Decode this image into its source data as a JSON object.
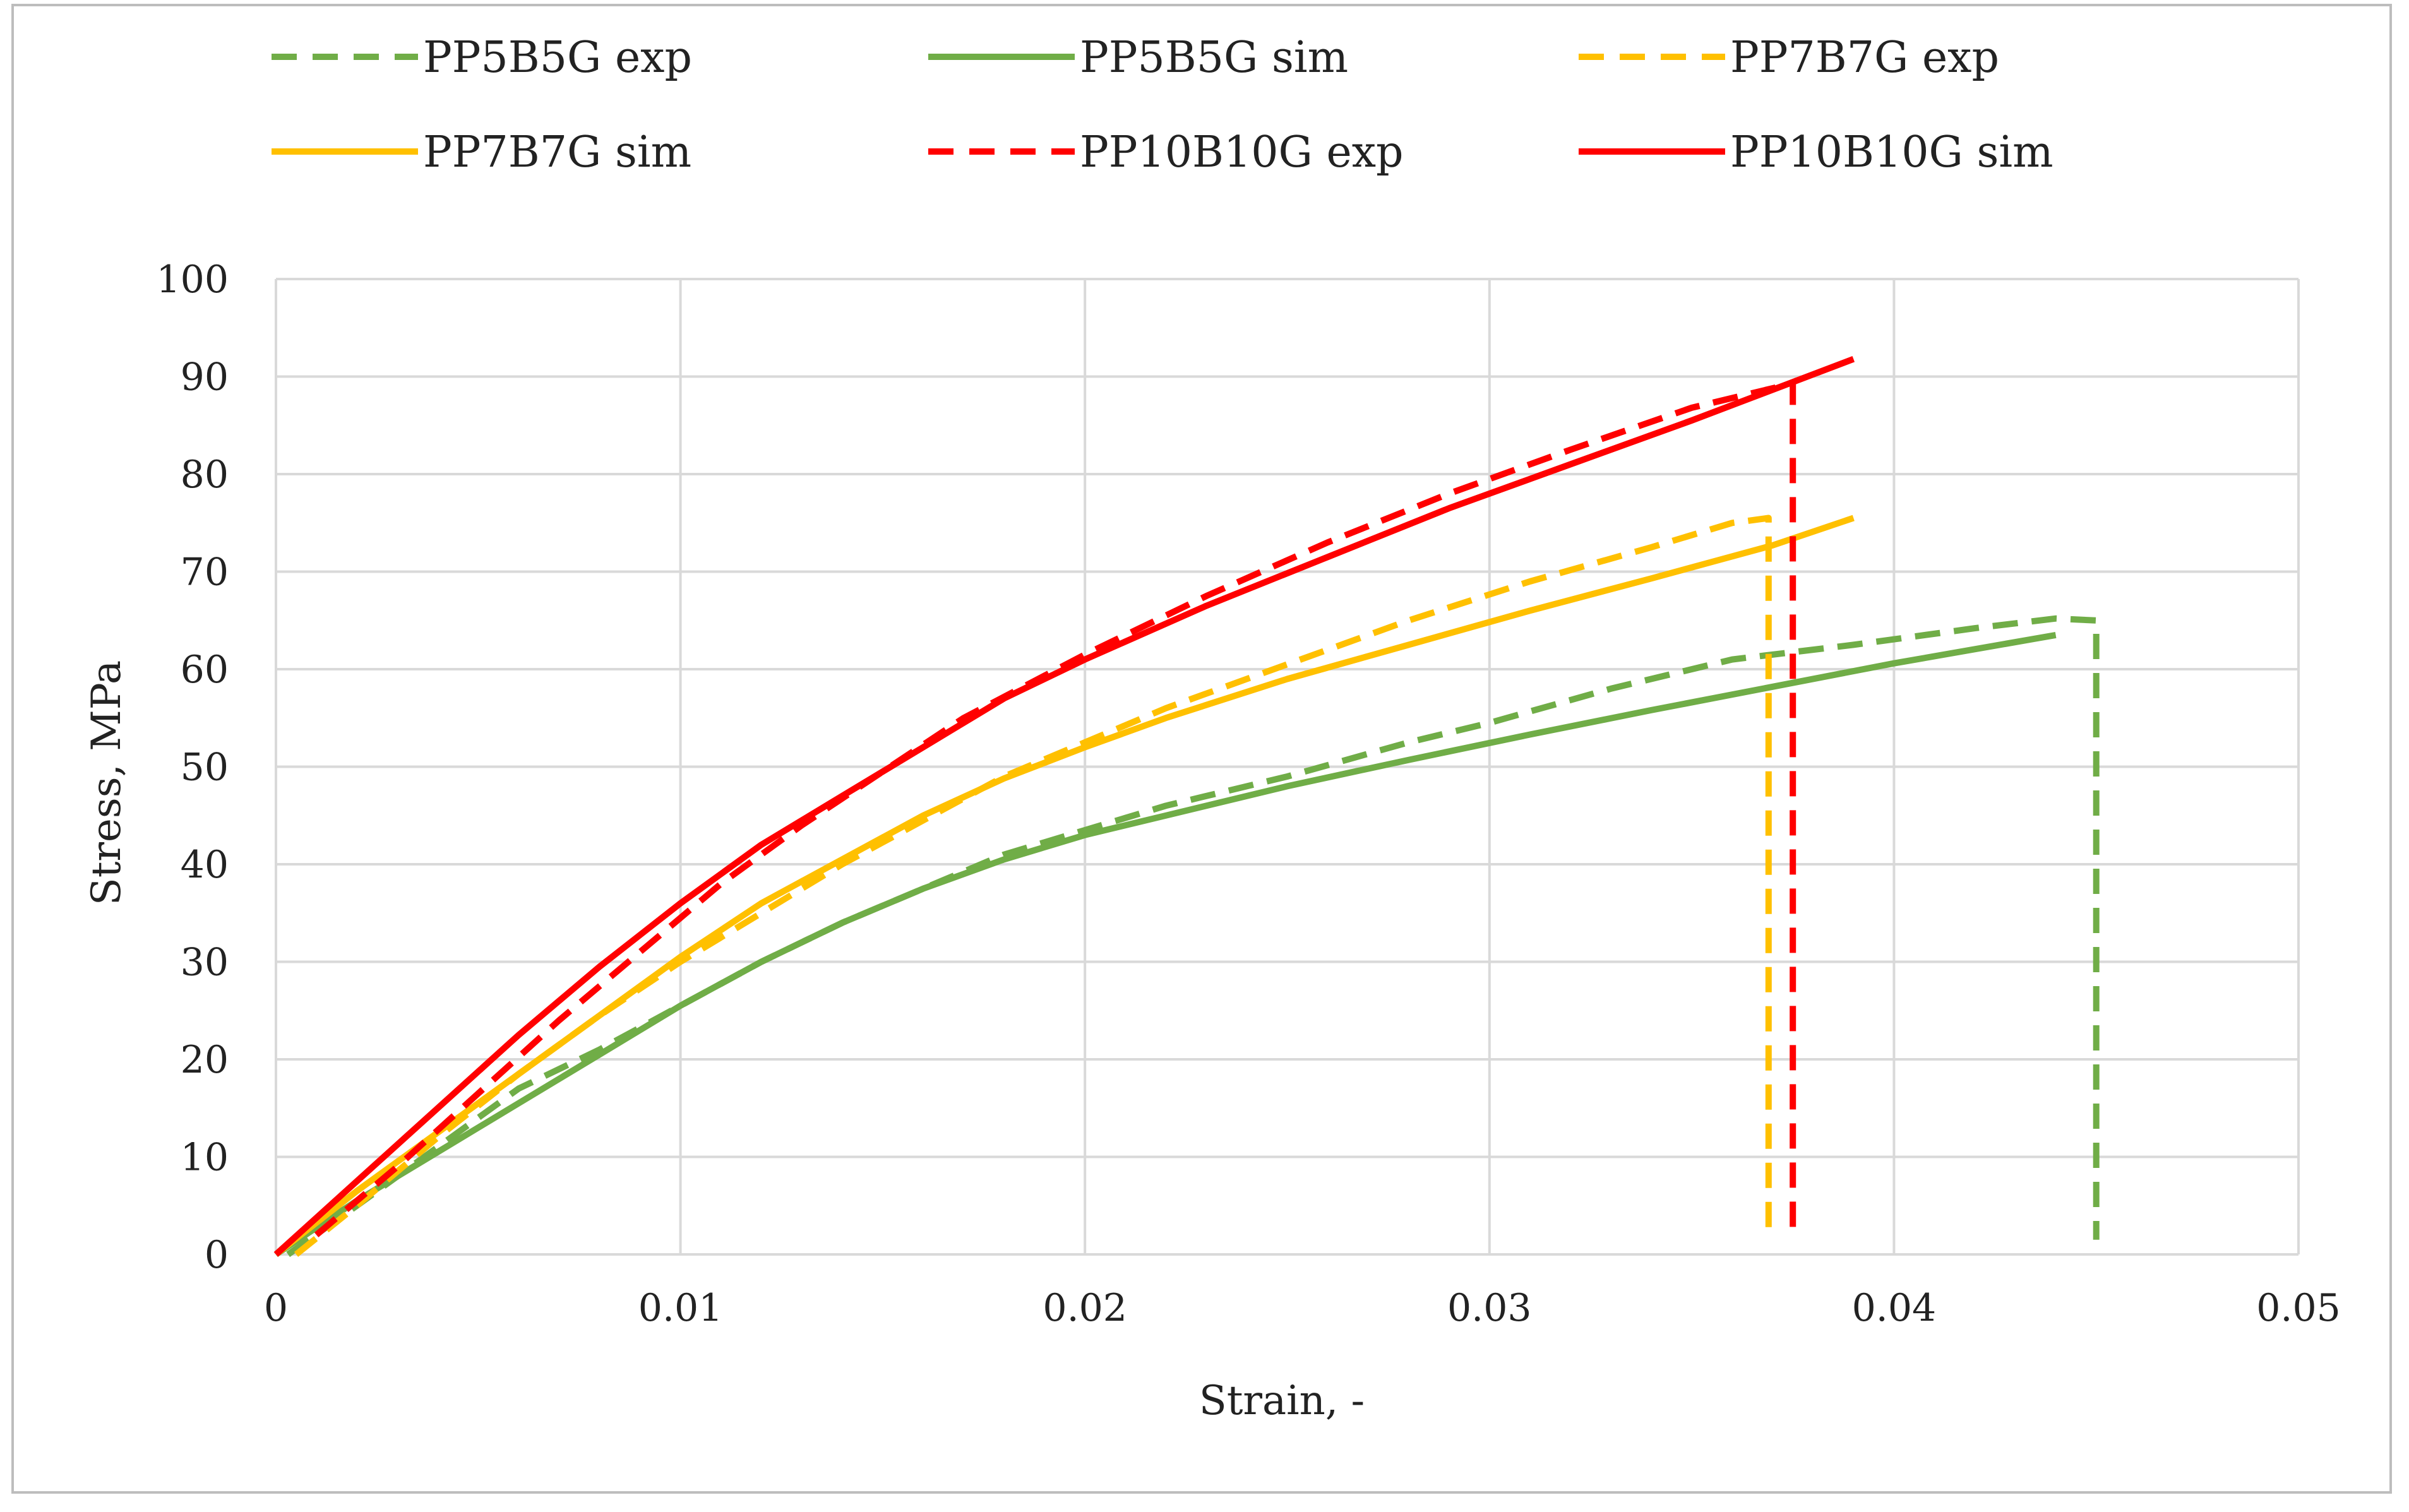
{
  "chart_data": {
    "type": "line",
    "title": "",
    "xlabel": "Strain, -",
    "ylabel": "Stress, MPa",
    "xlim": [
      0,
      0.05
    ],
    "ylim": [
      0,
      100
    ],
    "x_ticks": [
      0,
      0.01,
      0.02,
      0.03,
      0.04,
      0.05
    ],
    "x_tick_labels": [
      "0",
      "0.01",
      "0.02",
      "0.03",
      "0.04",
      "0.05"
    ],
    "y_ticks": [
      0,
      10,
      20,
      30,
      40,
      50,
      60,
      70,
      80,
      90,
      100
    ],
    "y_tick_labels": [
      "0",
      "10",
      "20",
      "30",
      "40",
      "50",
      "60",
      "70",
      "80",
      "90",
      "100"
    ],
    "grid": true,
    "legend_position": "top",
    "series": [
      {
        "name": "PP5B5G exp",
        "color": "#70ad47",
        "dash": "dashed",
        "points": [
          [
            0.0003,
            0
          ],
          [
            0.002,
            5
          ],
          [
            0.004,
            11
          ],
          [
            0.006,
            17
          ],
          [
            0.008,
            21
          ],
          [
            0.01,
            25.5
          ],
          [
            0.012,
            30
          ],
          [
            0.014,
            34
          ],
          [
            0.016,
            37.5
          ],
          [
            0.018,
            41
          ],
          [
            0.02,
            43.5
          ],
          [
            0.022,
            46
          ],
          [
            0.025,
            49
          ],
          [
            0.028,
            52.5
          ],
          [
            0.03,
            54.5
          ],
          [
            0.033,
            58
          ],
          [
            0.036,
            61
          ],
          [
            0.039,
            62.5
          ],
          [
            0.042,
            64.2
          ],
          [
            0.044,
            65.2
          ],
          [
            0.045,
            65
          ],
          [
            0.045,
            1.5
          ]
        ]
      },
      {
        "name": "PP5B5G sim",
        "color": "#70ad47",
        "dash": "solid",
        "points": [
          [
            0,
            0
          ],
          [
            0.002,
            5.5
          ],
          [
            0.004,
            10.5
          ],
          [
            0.006,
            15.5
          ],
          [
            0.008,
            20.5
          ],
          [
            0.01,
            25.5
          ],
          [
            0.012,
            30
          ],
          [
            0.014,
            34
          ],
          [
            0.016,
            37.5
          ],
          [
            0.018,
            40.5
          ],
          [
            0.02,
            43
          ],
          [
            0.022,
            45
          ],
          [
            0.025,
            48
          ],
          [
            0.028,
            50.7
          ],
          [
            0.031,
            53.3
          ],
          [
            0.034,
            55.8
          ],
          [
            0.037,
            58.2
          ],
          [
            0.04,
            60.6
          ],
          [
            0.044,
            63.5
          ]
        ]
      },
      {
        "name": "PP7B7G exp",
        "color": "#ffc000",
        "dash": "dashed",
        "points": [
          [
            0.0005,
            0
          ],
          [
            0.002,
            5
          ],
          [
            0.004,
            12
          ],
          [
            0.006,
            18.5
          ],
          [
            0.008,
            24.5
          ],
          [
            0.01,
            30
          ],
          [
            0.012,
            35
          ],
          [
            0.014,
            40
          ],
          [
            0.016,
            44.5
          ],
          [
            0.018,
            49
          ],
          [
            0.02,
            52.5
          ],
          [
            0.022,
            56
          ],
          [
            0.025,
            60.5
          ],
          [
            0.028,
            65
          ],
          [
            0.031,
            69
          ],
          [
            0.034,
            72.5
          ],
          [
            0.036,
            75
          ],
          [
            0.0369,
            75.5
          ],
          [
            0.0369,
            2
          ]
        ]
      },
      {
        "name": "PP7B7G sim",
        "color": "#ffc000",
        "dash": "solid",
        "points": [
          [
            0,
            0
          ],
          [
            0.002,
            6.5
          ],
          [
            0.004,
            12.5
          ],
          [
            0.006,
            18.5
          ],
          [
            0.008,
            24.5
          ],
          [
            0.01,
            30.5
          ],
          [
            0.012,
            36
          ],
          [
            0.014,
            40.5
          ],
          [
            0.016,
            45
          ],
          [
            0.018,
            48.8
          ],
          [
            0.02,
            52
          ],
          [
            0.022,
            55
          ],
          [
            0.025,
            59
          ],
          [
            0.028,
            62.5
          ],
          [
            0.031,
            66
          ],
          [
            0.034,
            69.3
          ],
          [
            0.037,
            72.7
          ],
          [
            0.039,
            75.5
          ]
        ]
      },
      {
        "name": "PP10B10G exp",
        "color": "#ff0000",
        "dash": "dashed",
        "points": [
          [
            0.001,
            2
          ],
          [
            0.003,
            9
          ],
          [
            0.005,
            16.5
          ],
          [
            0.007,
            24
          ],
          [
            0.009,
            31
          ],
          [
            0.011,
            38
          ],
          [
            0.013,
            44
          ],
          [
            0.015,
            49.5
          ],
          [
            0.017,
            55
          ],
          [
            0.02,
            61.5
          ],
          [
            0.023,
            67.5
          ],
          [
            0.026,
            73
          ],
          [
            0.029,
            78
          ],
          [
            0.032,
            82.5
          ],
          [
            0.035,
            86.8
          ],
          [
            0.0375,
            89.3
          ],
          [
            0.0375,
            1.5
          ]
        ]
      },
      {
        "name": "PP10B10G sim",
        "color": "#ff0000",
        "dash": "solid",
        "points": [
          [
            0,
            0
          ],
          [
            0.002,
            7.5
          ],
          [
            0.004,
            15
          ],
          [
            0.006,
            22.5
          ],
          [
            0.008,
            29.5
          ],
          [
            0.01,
            36
          ],
          [
            0.012,
            42
          ],
          [
            0.014,
            47
          ],
          [
            0.016,
            52
          ],
          [
            0.018,
            57
          ],
          [
            0.02,
            61
          ],
          [
            0.023,
            66.5
          ],
          [
            0.026,
            71.5
          ],
          [
            0.029,
            76.5
          ],
          [
            0.032,
            81
          ],
          [
            0.035,
            85.5
          ],
          [
            0.039,
            91.8
          ]
        ]
      }
    ]
  }
}
